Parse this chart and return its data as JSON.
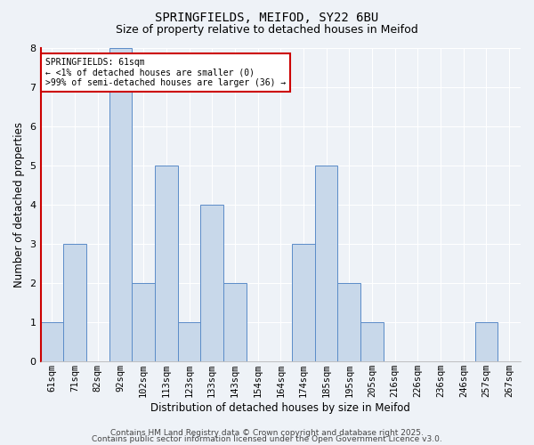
{
  "title1": "SPRINGFIELDS, MEIFOD, SY22 6BU",
  "title2": "Size of property relative to detached houses in Meifod",
  "categories": [
    "61sqm",
    "71sqm",
    "82sqm",
    "92sqm",
    "102sqm",
    "113sqm",
    "123sqm",
    "133sqm",
    "143sqm",
    "154sqm",
    "164sqm",
    "174sqm",
    "185sqm",
    "195sqm",
    "205sqm",
    "216sqm",
    "226sqm",
    "236sqm",
    "246sqm",
    "257sqm",
    "267sqm"
  ],
  "xlabel": "Distribution of detached houses by size in Meifod",
  "ylabel": "Number of detached properties",
  "values": [
    1,
    3,
    0,
    8,
    2,
    5,
    1,
    4,
    2,
    0,
    0,
    3,
    5,
    2,
    1,
    0,
    0,
    0,
    0,
    1,
    0
  ],
  "bar_color": "#c8d8ea",
  "bar_edge_color": "#5b8cc8",
  "annotation_text": "SPRINGFIELDS: 61sqm\n← <1% of detached houses are smaller (0)\n>99% of semi-detached houses are larger (36) →",
  "ylim": [
    0,
    8
  ],
  "yticks": [
    0,
    1,
    2,
    3,
    4,
    5,
    6,
    7,
    8
  ],
  "footer1": "Contains HM Land Registry data © Crown copyright and database right 2025.",
  "footer2": "Contains public sector information licensed under the Open Government Licence v3.0.",
  "bg_color": "#eef2f7",
  "grid_color": "#ffffff",
  "left_spine_color": "#cc0000",
  "annot_box_edge": "#cc0000",
  "annot_box_face": "#ffffff"
}
